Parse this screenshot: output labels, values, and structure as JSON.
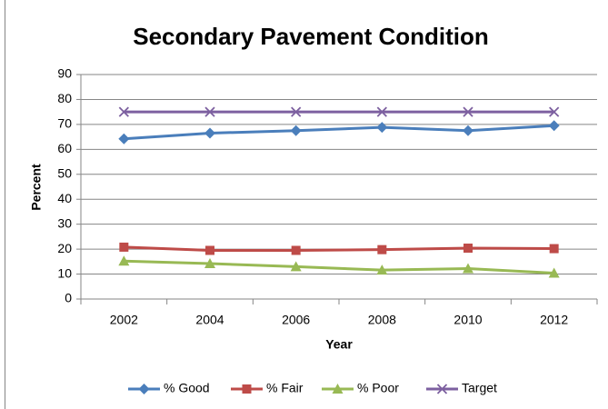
{
  "chart_data": {
    "type": "line",
    "title": "Secondary Pavement Condition",
    "x_label": "Year",
    "y_label": "Percent",
    "categories": [
      "2002",
      "2004",
      "2006",
      "2008",
      "2010",
      "2012"
    ],
    "series": [
      {
        "name": "% Good",
        "color": "#4a7ebb",
        "marker": "diamond",
        "values": [
          64.2,
          66.5,
          67.5,
          68.8,
          67.5,
          69.5
        ]
      },
      {
        "name": "% Fair",
        "color": "#be4b48",
        "marker": "square",
        "values": [
          20.8,
          19.5,
          19.5,
          19.8,
          20.4,
          20.2
        ]
      },
      {
        "name": "% Poor",
        "color": "#98b954",
        "marker": "triangle",
        "values": [
          15.2,
          14.2,
          13.0,
          11.6,
          12.2,
          10.4
        ]
      },
      {
        "name": "Target",
        "color": "#7d60a0",
        "marker": "x",
        "values": [
          75,
          75,
          75,
          75,
          75,
          75
        ]
      }
    ],
    "ylim": [
      0,
      90
    ],
    "yticks": [
      0,
      10,
      20,
      30,
      40,
      50,
      60,
      70,
      80,
      90
    ],
    "grid": true,
    "legend": "bottom"
  }
}
